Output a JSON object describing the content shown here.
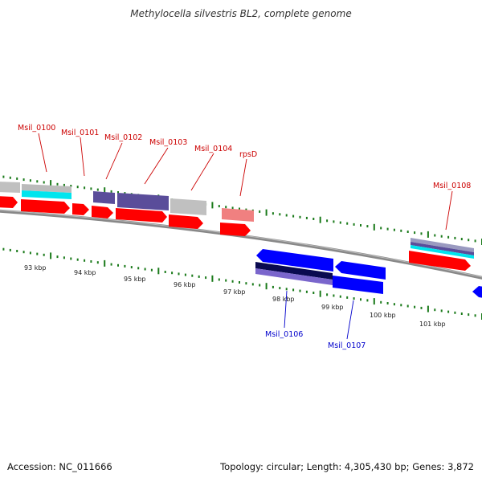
{
  "title": "Methylocella silvestris BL2, complete genome",
  "footer": {
    "accession": "Accession: NC_011666",
    "stats": "Topology: circular; Length: 4,305,430 bp; Genes: 3,872"
  },
  "colors": {
    "forward_gene": "#ff0000",
    "reverse_gene": "#0000ff",
    "forward_label": "#cc0000",
    "reverse_label": "#0000cc",
    "rna_gene": "#f08080",
    "cog_purple": "#5a4d9a",
    "cog_gray": "#c0c0c0",
    "cog_cyan": "#00e5ee",
    "backbone": "#888888",
    "tick": "#1a7a1a"
  },
  "genes": {
    "forward": [
      {
        "name": "Msil_0100"
      },
      {
        "name": "Msil_0101"
      },
      {
        "name": "Msil_0102"
      },
      {
        "name": "Msil_0103"
      },
      {
        "name": "Msil_0104"
      },
      {
        "name": "rpsD"
      },
      {
        "name": "Msil_0108"
      }
    ],
    "reverse": [
      {
        "name": "Msil_0106"
      },
      {
        "name": "Msil_0107"
      }
    ]
  },
  "scale": {
    "unit": "kbp",
    "ticks": [
      "93 kbp",
      "94 kbp",
      "95 kbp",
      "96 kbp",
      "97 kbp",
      "98 kbp",
      "99 kbp",
      "100 kbp",
      "101 kbp"
    ]
  }
}
